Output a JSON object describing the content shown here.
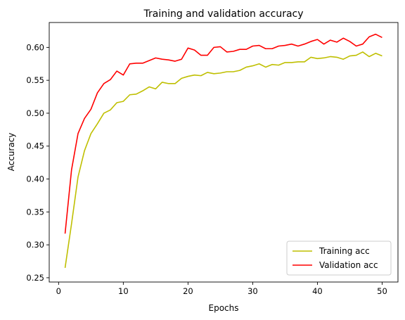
{
  "chart_data": {
    "type": "line",
    "title": "Training and validation accuracy",
    "xlabel": "Epochs",
    "ylabel": "Accuracy",
    "xlim": [
      -1.45,
      52.45
    ],
    "ylim": [
      0.2435,
      0.6378
    ],
    "xticks": [
      0,
      10,
      20,
      30,
      40,
      50
    ],
    "yticks": [
      0.25,
      0.3,
      0.35,
      0.4,
      0.45,
      0.5,
      0.55,
      0.6
    ],
    "ytick_labels": [
      "0.25",
      "0.30",
      "0.35",
      "0.40",
      "0.45",
      "0.50",
      "0.55",
      "0.60"
    ],
    "grid": false,
    "legend": "lower-right",
    "x": [
      1,
      2,
      3,
      4,
      5,
      6,
      7,
      8,
      9,
      10,
      11,
      12,
      13,
      14,
      15,
      16,
      17,
      18,
      19,
      20,
      21,
      22,
      23,
      24,
      25,
      26,
      27,
      28,
      29,
      30,
      31,
      32,
      33,
      34,
      35,
      36,
      37,
      38,
      39,
      40,
      41,
      42,
      43,
      44,
      45,
      46,
      47,
      48,
      49,
      50
    ],
    "series": [
      {
        "name": "Training acc",
        "color": "#bfbf00",
        "values": [
          0.265,
          0.332,
          0.403,
          0.443,
          0.469,
          0.484,
          0.5,
          0.505,
          0.516,
          0.518,
          0.528,
          0.529,
          0.534,
          0.54,
          0.537,
          0.547,
          0.545,
          0.545,
          0.553,
          0.556,
          0.558,
          0.557,
          0.562,
          0.56,
          0.561,
          0.563,
          0.563,
          0.565,
          0.57,
          0.572,
          0.575,
          0.57,
          0.574,
          0.573,
          0.577,
          0.577,
          0.578,
          0.578,
          0.585,
          0.583,
          0.584,
          0.586,
          0.585,
          0.582,
          0.587,
          0.588,
          0.593,
          0.586,
          0.591,
          0.587
        ]
      },
      {
        "name": "Validation acc",
        "color": "#ff0000",
        "values": [
          0.317,
          0.414,
          0.469,
          0.492,
          0.506,
          0.531,
          0.545,
          0.551,
          0.564,
          0.558,
          0.575,
          0.576,
          0.576,
          0.58,
          0.584,
          0.582,
          0.581,
          0.579,
          0.582,
          0.599,
          0.596,
          0.588,
          0.588,
          0.6,
          0.601,
          0.593,
          0.594,
          0.597,
          0.597,
          0.602,
          0.603,
          0.598,
          0.598,
          0.602,
          0.603,
          0.605,
          0.602,
          0.605,
          0.609,
          0.612,
          0.605,
          0.611,
          0.608,
          0.614,
          0.609,
          0.602,
          0.605,
          0.616,
          0.62,
          0.615
        ]
      }
    ]
  }
}
